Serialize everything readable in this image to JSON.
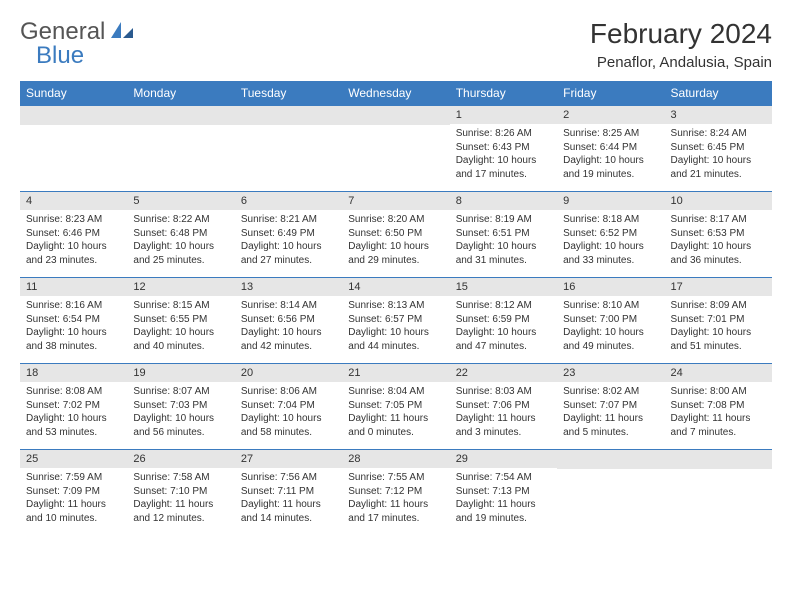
{
  "logo": {
    "part1": "General",
    "part2": "Blue"
  },
  "colors": {
    "brand": "#3b7bbf",
    "shade": "#e6e6e6",
    "text": "#333333"
  },
  "title": "February 2024",
  "location": "Penaflor, Andalusia, Spain",
  "dow": [
    "Sunday",
    "Monday",
    "Tuesday",
    "Wednesday",
    "Thursday",
    "Friday",
    "Saturday"
  ],
  "weeks": [
    [
      null,
      null,
      null,
      null,
      {
        "n": "1",
        "sr": "Sunrise: 8:26 AM",
        "ss": "Sunset: 6:43 PM",
        "d1": "Daylight: 10 hours",
        "d2": "and 17 minutes."
      },
      {
        "n": "2",
        "sr": "Sunrise: 8:25 AM",
        "ss": "Sunset: 6:44 PM",
        "d1": "Daylight: 10 hours",
        "d2": "and 19 minutes."
      },
      {
        "n": "3",
        "sr": "Sunrise: 8:24 AM",
        "ss": "Sunset: 6:45 PM",
        "d1": "Daylight: 10 hours",
        "d2": "and 21 minutes."
      }
    ],
    [
      {
        "n": "4",
        "sr": "Sunrise: 8:23 AM",
        "ss": "Sunset: 6:46 PM",
        "d1": "Daylight: 10 hours",
        "d2": "and 23 minutes."
      },
      {
        "n": "5",
        "sr": "Sunrise: 8:22 AM",
        "ss": "Sunset: 6:48 PM",
        "d1": "Daylight: 10 hours",
        "d2": "and 25 minutes."
      },
      {
        "n": "6",
        "sr": "Sunrise: 8:21 AM",
        "ss": "Sunset: 6:49 PM",
        "d1": "Daylight: 10 hours",
        "d2": "and 27 minutes."
      },
      {
        "n": "7",
        "sr": "Sunrise: 8:20 AM",
        "ss": "Sunset: 6:50 PM",
        "d1": "Daylight: 10 hours",
        "d2": "and 29 minutes."
      },
      {
        "n": "8",
        "sr": "Sunrise: 8:19 AM",
        "ss": "Sunset: 6:51 PM",
        "d1": "Daylight: 10 hours",
        "d2": "and 31 minutes."
      },
      {
        "n": "9",
        "sr": "Sunrise: 8:18 AM",
        "ss": "Sunset: 6:52 PM",
        "d1": "Daylight: 10 hours",
        "d2": "and 33 minutes."
      },
      {
        "n": "10",
        "sr": "Sunrise: 8:17 AM",
        "ss": "Sunset: 6:53 PM",
        "d1": "Daylight: 10 hours",
        "d2": "and 36 minutes."
      }
    ],
    [
      {
        "n": "11",
        "sr": "Sunrise: 8:16 AM",
        "ss": "Sunset: 6:54 PM",
        "d1": "Daylight: 10 hours",
        "d2": "and 38 minutes."
      },
      {
        "n": "12",
        "sr": "Sunrise: 8:15 AM",
        "ss": "Sunset: 6:55 PM",
        "d1": "Daylight: 10 hours",
        "d2": "and 40 minutes."
      },
      {
        "n": "13",
        "sr": "Sunrise: 8:14 AM",
        "ss": "Sunset: 6:56 PM",
        "d1": "Daylight: 10 hours",
        "d2": "and 42 minutes."
      },
      {
        "n": "14",
        "sr": "Sunrise: 8:13 AM",
        "ss": "Sunset: 6:57 PM",
        "d1": "Daylight: 10 hours",
        "d2": "and 44 minutes."
      },
      {
        "n": "15",
        "sr": "Sunrise: 8:12 AM",
        "ss": "Sunset: 6:59 PM",
        "d1": "Daylight: 10 hours",
        "d2": "and 47 minutes."
      },
      {
        "n": "16",
        "sr": "Sunrise: 8:10 AM",
        "ss": "Sunset: 7:00 PM",
        "d1": "Daylight: 10 hours",
        "d2": "and 49 minutes."
      },
      {
        "n": "17",
        "sr": "Sunrise: 8:09 AM",
        "ss": "Sunset: 7:01 PM",
        "d1": "Daylight: 10 hours",
        "d2": "and 51 minutes."
      }
    ],
    [
      {
        "n": "18",
        "sr": "Sunrise: 8:08 AM",
        "ss": "Sunset: 7:02 PM",
        "d1": "Daylight: 10 hours",
        "d2": "and 53 minutes."
      },
      {
        "n": "19",
        "sr": "Sunrise: 8:07 AM",
        "ss": "Sunset: 7:03 PM",
        "d1": "Daylight: 10 hours",
        "d2": "and 56 minutes."
      },
      {
        "n": "20",
        "sr": "Sunrise: 8:06 AM",
        "ss": "Sunset: 7:04 PM",
        "d1": "Daylight: 10 hours",
        "d2": "and 58 minutes."
      },
      {
        "n": "21",
        "sr": "Sunrise: 8:04 AM",
        "ss": "Sunset: 7:05 PM",
        "d1": "Daylight: 11 hours",
        "d2": "and 0 minutes."
      },
      {
        "n": "22",
        "sr": "Sunrise: 8:03 AM",
        "ss": "Sunset: 7:06 PM",
        "d1": "Daylight: 11 hours",
        "d2": "and 3 minutes."
      },
      {
        "n": "23",
        "sr": "Sunrise: 8:02 AM",
        "ss": "Sunset: 7:07 PM",
        "d1": "Daylight: 11 hours",
        "d2": "and 5 minutes."
      },
      {
        "n": "24",
        "sr": "Sunrise: 8:00 AM",
        "ss": "Sunset: 7:08 PM",
        "d1": "Daylight: 11 hours",
        "d2": "and 7 minutes."
      }
    ],
    [
      {
        "n": "25",
        "sr": "Sunrise: 7:59 AM",
        "ss": "Sunset: 7:09 PM",
        "d1": "Daylight: 11 hours",
        "d2": "and 10 minutes."
      },
      {
        "n": "26",
        "sr": "Sunrise: 7:58 AM",
        "ss": "Sunset: 7:10 PM",
        "d1": "Daylight: 11 hours",
        "d2": "and 12 minutes."
      },
      {
        "n": "27",
        "sr": "Sunrise: 7:56 AM",
        "ss": "Sunset: 7:11 PM",
        "d1": "Daylight: 11 hours",
        "d2": "and 14 minutes."
      },
      {
        "n": "28",
        "sr": "Sunrise: 7:55 AM",
        "ss": "Sunset: 7:12 PM",
        "d1": "Daylight: 11 hours",
        "d2": "and 17 minutes."
      },
      {
        "n": "29",
        "sr": "Sunrise: 7:54 AM",
        "ss": "Sunset: 7:13 PM",
        "d1": "Daylight: 11 hours",
        "d2": "and 19 minutes."
      },
      null,
      null
    ]
  ]
}
